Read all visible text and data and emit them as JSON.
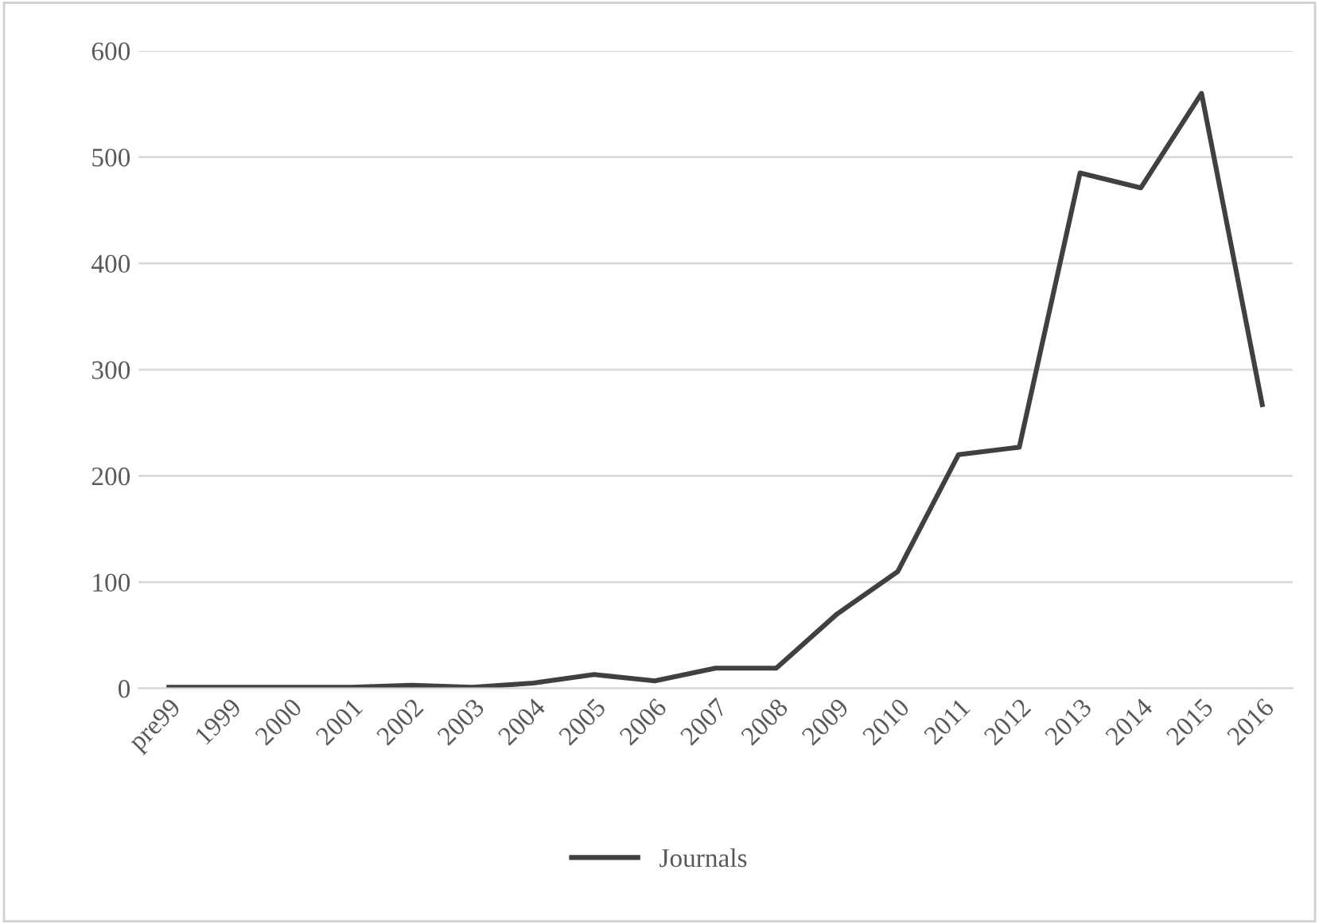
{
  "chart_data": {
    "type": "line",
    "categories": [
      "pre99",
      "1999",
      "2000",
      "2001",
      "2002",
      "2003",
      "2004",
      "2005",
      "2006",
      "2007",
      "2008",
      "2009",
      "2010",
      "2011",
      "2012",
      "2013",
      "2014",
      "2015",
      "2016"
    ],
    "series": [
      {
        "name": "Journals",
        "color": "#404040",
        "values": [
          1,
          1,
          1,
          1,
          3,
          1,
          5,
          13,
          7,
          19,
          19,
          70,
          110,
          220,
          227,
          485,
          471,
          560,
          267
        ]
      }
    ],
    "ylim": [
      0,
      600
    ],
    "yticks": [
      0,
      100,
      200,
      300,
      400,
      500,
      600
    ],
    "grid": "y",
    "legend": "bottom",
    "marker": "none",
    "line_style": "solid"
  }
}
